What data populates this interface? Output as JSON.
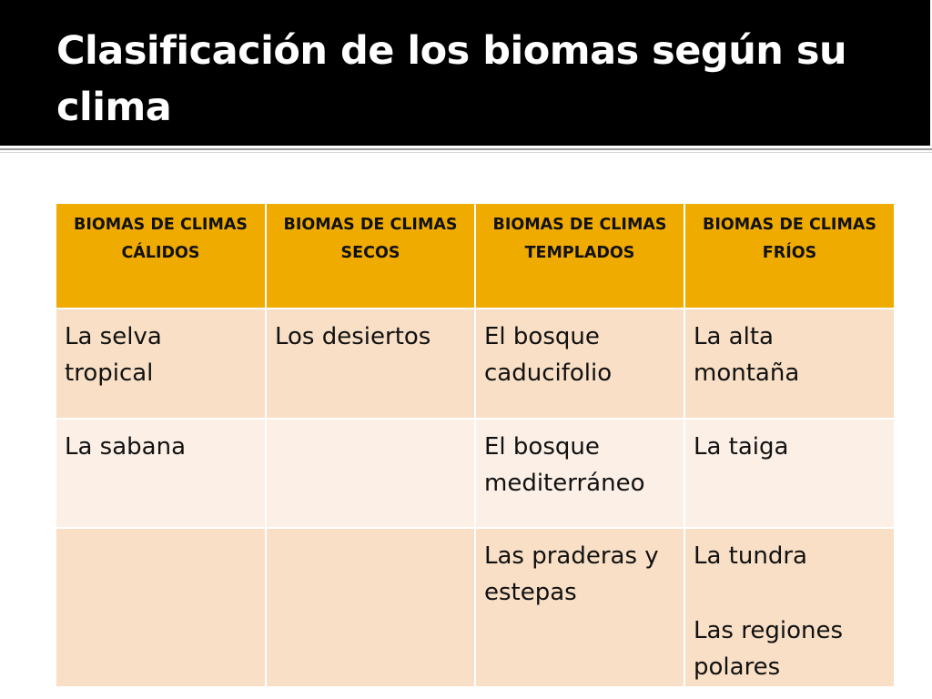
{
  "slide": {
    "title": "Clasificación de los biomas según su clima"
  },
  "table": {
    "headers": [
      "BIOMAS DE CLIMAS CÁLIDOS",
      "BIOMAS DE CLIMAS SECOS",
      "BIOMAS DE CLIMAS TEMPLADOS",
      "BIOMAS DE CLIMAS FRÍOS"
    ],
    "rows": [
      [
        "La selva tropical",
        "Los desiertos",
        "El bosque caducifolio",
        "La alta montaña"
      ],
      [
        "La sabana",
        "",
        "El  bosque mediterráneo",
        "La taiga"
      ],
      [
        "",
        "",
        "Las praderas y estepas",
        [
          "La tundra",
          "Las regiones polares"
        ]
      ]
    ]
  },
  "colors": {
    "title_background": "#000000",
    "title_text": "#ffffff",
    "header_background": "#f0ab00",
    "row_shade_dark": "#f8dfc6",
    "row_shade_light": "#fbefe6"
  }
}
